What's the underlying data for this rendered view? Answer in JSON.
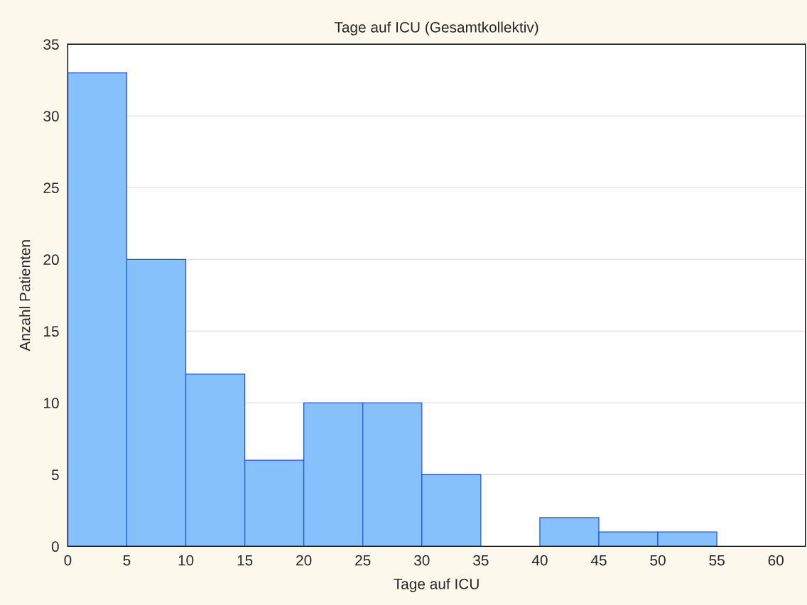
{
  "chart_data": {
    "type": "histogram",
    "title": "Tage auf ICU (Gesamtkollektiv)",
    "xlabel": "Tage auf ICU",
    "ylabel": "Anzahl Patienten",
    "bins": [
      0,
      5,
      10,
      15,
      20,
      25,
      30,
      35,
      40,
      45,
      50,
      55
    ],
    "values": [
      33,
      20,
      12,
      6,
      10,
      10,
      5,
      0,
      2,
      1,
      1
    ],
    "color": "#87c1fb",
    "xlim": [
      0,
      62.5
    ],
    "xticks": [
      0,
      5,
      10,
      15,
      20,
      25,
      30,
      35,
      40,
      45,
      50,
      55,
      60
    ],
    "ylim": [
      0,
      35
    ],
    "yticks": [
      0,
      5,
      10,
      15,
      20,
      25,
      30,
      35
    ],
    "grid": "y",
    "legend": false
  }
}
